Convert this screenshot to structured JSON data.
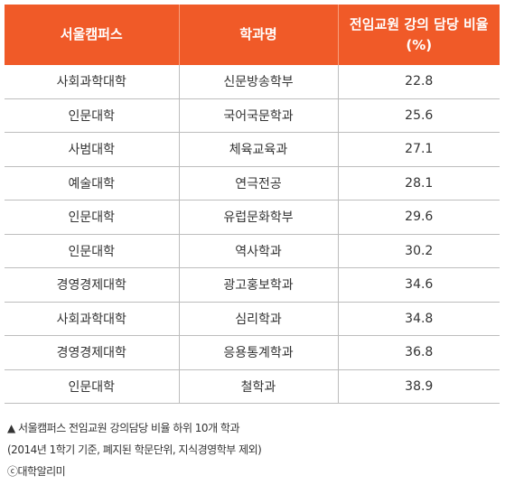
{
  "table": {
    "headers": [
      "서울캠퍼스",
      "학과명",
      "전임교원 강의 담당 비율(%)"
    ],
    "rows": [
      [
        "사회과학대학",
        "신문방송학부",
        "22.8"
      ],
      [
        "인문대학",
        "국어국문학과",
        "25.6"
      ],
      [
        "사범대학",
        "체육교육과",
        "27.1"
      ],
      [
        "예술대학",
        "연극전공",
        "28.1"
      ],
      [
        "인문대학",
        "유럽문화학부",
        "29.6"
      ],
      [
        "인문대학",
        "역사학과",
        "30.2"
      ],
      [
        "경영경제대학",
        "광고홍보학과",
        "34.6"
      ],
      [
        "사회과학대학",
        "심리학과",
        "34.8"
      ],
      [
        "경영경제대학",
        "응용통계학과",
        "36.8"
      ],
      [
        "인문대학",
        "철학과",
        "38.9"
      ]
    ]
  },
  "footnote": {
    "caption": "▲ 서울캠퍼스 전임교원 강의담당 비율 하위 10개 학과",
    "note": "(2014년 1학기 기준, 폐지된 학문단위, 지식경영학부 제외)",
    "credit": "ⓒ대학알리미"
  },
  "colors": {
    "header_bg": "#f05a28",
    "header_text": "#ffffff",
    "row_border": "#bdbdbd"
  }
}
